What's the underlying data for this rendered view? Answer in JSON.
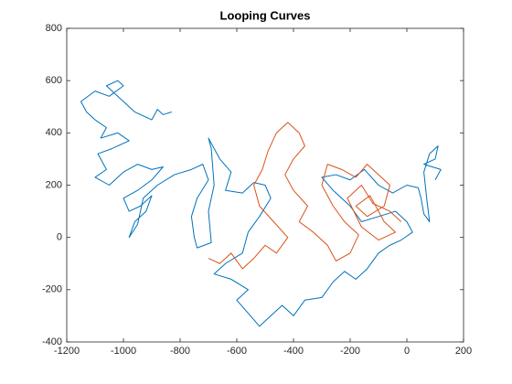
{
  "chart_data": {
    "type": "line",
    "title": "Looping Curves",
    "xlim": [
      -1200,
      200
    ],
    "xticks": [
      -1200,
      -1000,
      -800,
      -600,
      -400,
      -200,
      0,
      200
    ],
    "ylim": [
      -400,
      800
    ],
    "yticks": [
      -400,
      -200,
      0,
      200,
      400,
      600,
      800
    ],
    "grid": false,
    "series": [
      {
        "color": "#0072bd",
        "x": [
          -830,
          -860,
          -880,
          -900,
          -960,
          -1000,
          -1040,
          -1060,
          -1020,
          -1000,
          -1050,
          -1100,
          -1150,
          -1130,
          -1100,
          -1060,
          -1080,
          -1020,
          -980,
          -1040,
          -1090,
          -1060,
          -1100,
          -1050,
          -1000,
          -950,
          -900,
          -860,
          -900,
          -950,
          -1000,
          -980,
          -940,
          -900,
          -920,
          -960,
          -980,
          -950,
          -930,
          -880,
          -820,
          -760,
          -720,
          -700,
          -740,
          -760,
          -750,
          -740,
          -690,
          -700,
          -680,
          -690,
          -700,
          -660,
          -620,
          -640,
          -580,
          -540,
          -500,
          -480,
          -520,
          -560,
          -580,
          -640,
          -680,
          -620,
          -560,
          -600,
          -560,
          -520,
          -480,
          -440,
          -400,
          -360,
          -300,
          -260,
          -220,
          -180,
          -140,
          -100,
          -60,
          -20,
          20,
          0,
          -40,
          -100,
          -160,
          -200,
          -260,
          -300,
          -250,
          -200,
          -150,
          -100,
          -50,
          0,
          40,
          50,
          60,
          80,
          70,
          60,
          80,
          110,
          100,
          60,
          120,
          100
        ],
        "values": [
          480,
          470,
          490,
          450,
          480,
          520,
          560,
          580,
          600,
          580,
          540,
          560,
          520,
          480,
          450,
          420,
          380,
          400,
          370,
          340,
          320,
          260,
          230,
          200,
          250,
          280,
          260,
          270,
          220,
          180,
          150,
          100,
          120,
          160,
          100,
          60,
          0,
          50,
          150,
          200,
          240,
          260,
          280,
          220,
          150,
          80,
          0,
          -40,
          -20,
          100,
          200,
          340,
          380,
          300,
          250,
          180,
          170,
          210,
          200,
          150,
          80,
          20,
          -60,
          -100,
          -140,
          -160,
          -200,
          -240,
          -290,
          -340,
          -300,
          -260,
          -300,
          -240,
          -230,
          -170,
          -130,
          -160,
          -120,
          -60,
          -30,
          -10,
          20,
          60,
          100,
          80,
          60,
          120,
          180,
          230,
          240,
          220,
          260,
          200,
          170,
          200,
          190,
          150,
          90,
          60,
          150,
          250,
          320,
          350,
          300,
          280,
          260,
          220
        ]
      },
      {
        "color": "#d95319",
        "x": [
          -700,
          -660,
          -620,
          -580,
          -540,
          -500,
          -460,
          -420,
          -470,
          -520,
          -540,
          -510,
          -490,
          -460,
          -420,
          -380,
          -360,
          -400,
          -430,
          -400,
          -350,
          -380,
          -330,
          -280,
          -250,
          -200,
          -170,
          -220,
          -260,
          -300,
          -280,
          -230,
          -180,
          -140,
          -100,
          -60,
          -80,
          -140,
          -180,
          -130,
          -80,
          -40,
          -100,
          -160,
          -210,
          -160,
          -120,
          -60,
          -20
        ],
        "values": [
          -80,
          -100,
          -60,
          -120,
          -80,
          -30,
          -60,
          0,
          60,
          120,
          200,
          260,
          330,
          400,
          440,
          400,
          350,
          300,
          240,
          180,
          120,
          60,
          20,
          -30,
          -90,
          -60,
          10,
          60,
          120,
          200,
          280,
          260,
          230,
          280,
          240,
          200,
          120,
          80,
          120,
          160,
          60,
          20,
          -10,
          40,
          150,
          200,
          130,
          100,
          60
        ]
      }
    ]
  }
}
